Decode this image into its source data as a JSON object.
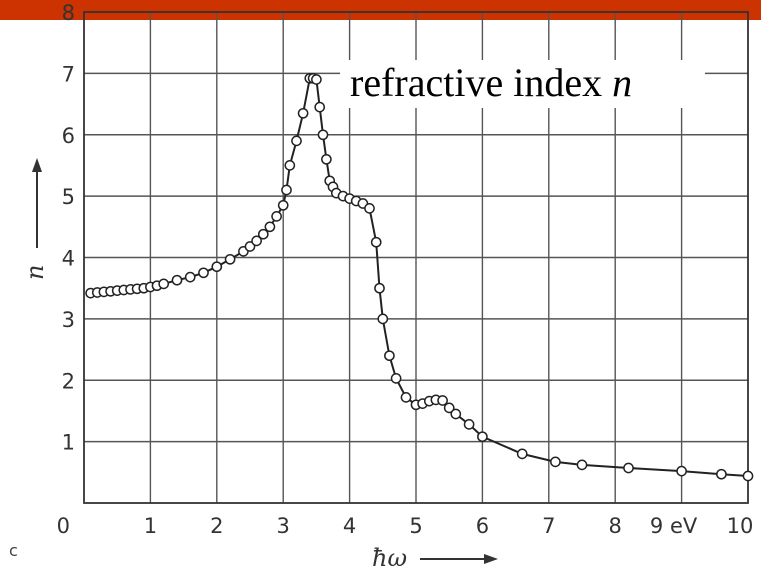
{
  "top_bar_color": "#cc3300",
  "panel_label": "c",
  "chart_data": {
    "type": "line",
    "title": "refractive index",
    "title_symbol": "n",
    "xlabel": "ħω",
    "ylabel": "n",
    "xlim": [
      0,
      10
    ],
    "ylim": [
      0,
      8
    ],
    "x_ticks": [
      "0",
      "1",
      "2",
      "3",
      "4",
      "5",
      "6",
      "7",
      "8",
      "9 eV",
      "10"
    ],
    "y_ticks": [
      "1",
      "2",
      "3",
      "4",
      "5",
      "6",
      "7",
      "8"
    ],
    "grid": true,
    "series": [
      {
        "points": [
          [
            0.1,
            3.42
          ],
          [
            0.2,
            3.43
          ],
          [
            0.3,
            3.44
          ],
          [
            0.4,
            3.45
          ],
          [
            0.5,
            3.46
          ],
          [
            0.6,
            3.47
          ],
          [
            0.7,
            3.48
          ],
          [
            0.8,
            3.49
          ],
          [
            0.9,
            3.5
          ],
          [
            1.0,
            3.52
          ],
          [
            1.1,
            3.54
          ],
          [
            1.2,
            3.57
          ],
          [
            1.4,
            3.63
          ],
          [
            1.6,
            3.68
          ],
          [
            1.8,
            3.75
          ],
          [
            2.0,
            3.85
          ],
          [
            2.2,
            3.97
          ],
          [
            2.4,
            4.1
          ],
          [
            2.5,
            4.18
          ],
          [
            2.6,
            4.27
          ],
          [
            2.7,
            4.38
          ],
          [
            2.8,
            4.5
          ],
          [
            2.9,
            4.67
          ],
          [
            3.0,
            4.85
          ],
          [
            3.05,
            5.1
          ],
          [
            3.1,
            5.5
          ],
          [
            3.2,
            5.9
          ],
          [
            3.3,
            6.35
          ],
          [
            3.4,
            6.92
          ],
          [
            3.45,
            6.92
          ],
          [
            3.5,
            6.9
          ],
          [
            3.55,
            6.45
          ],
          [
            3.6,
            6.0
          ],
          [
            3.65,
            5.6
          ],
          [
            3.7,
            5.25
          ],
          [
            3.75,
            5.15
          ],
          [
            3.8,
            5.05
          ],
          [
            3.9,
            5.0
          ],
          [
            4.0,
            4.96
          ],
          [
            4.1,
            4.92
          ],
          [
            4.2,
            4.88
          ],
          [
            4.3,
            4.8
          ],
          [
            4.4,
            4.25
          ],
          [
            4.45,
            3.5
          ],
          [
            4.5,
            3.0
          ],
          [
            4.6,
            2.4
          ],
          [
            4.7,
            2.03
          ],
          [
            4.85,
            1.72
          ],
          [
            5.0,
            1.6
          ],
          [
            5.1,
            1.62
          ],
          [
            5.2,
            1.66
          ],
          [
            5.3,
            1.68
          ],
          [
            5.4,
            1.67
          ],
          [
            5.5,
            1.55
          ],
          [
            5.6,
            1.45
          ],
          [
            5.8,
            1.28
          ],
          [
            6.0,
            1.08
          ],
          [
            6.6,
            0.8
          ],
          [
            7.1,
            0.67
          ],
          [
            7.5,
            0.62
          ],
          [
            8.2,
            0.57
          ],
          [
            9.0,
            0.52
          ],
          [
            9.6,
            0.47
          ],
          [
            10.0,
            0.44
          ]
        ]
      }
    ]
  }
}
